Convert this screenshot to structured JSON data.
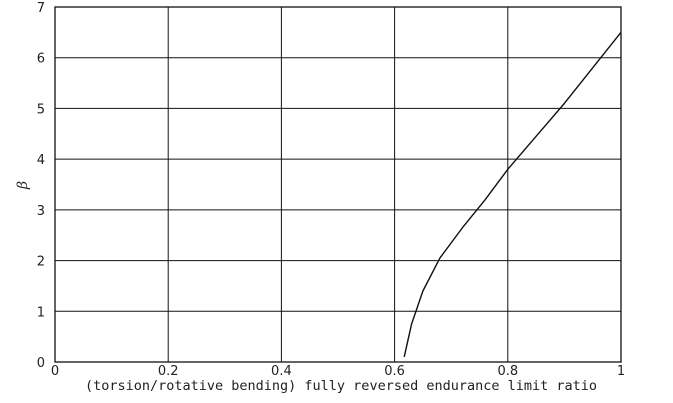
{
  "chart_data": {
    "type": "line",
    "title": "",
    "xlabel": "(torsion/rotative bending) fully reversed endurance limit ratio",
    "ylabel": "β",
    "xlim": [
      0,
      1
    ],
    "ylim": [
      0,
      7
    ],
    "xticks": [
      0,
      0.2,
      0.4,
      0.6,
      0.8,
      1
    ],
    "xtick_labels": [
      "0",
      "0.2",
      "0.4",
      "0.6",
      "0.8",
      "1"
    ],
    "yticks": [
      0,
      1,
      2,
      3,
      4,
      5,
      6,
      7
    ],
    "ytick_labels": [
      "0",
      "1",
      "2",
      "3",
      "4",
      "5",
      "6",
      "7"
    ],
    "grid": true,
    "series": [
      {
        "x": [
          0.617,
          0.63,
          0.65,
          0.68,
          0.72,
          0.76,
          0.8,
          0.85,
          0.9,
          0.95,
          1.0
        ],
        "y": [
          0.1,
          0.75,
          1.4,
          2.05,
          2.65,
          3.2,
          3.8,
          4.45,
          5.1,
          5.8,
          6.5
        ]
      }
    ]
  }
}
